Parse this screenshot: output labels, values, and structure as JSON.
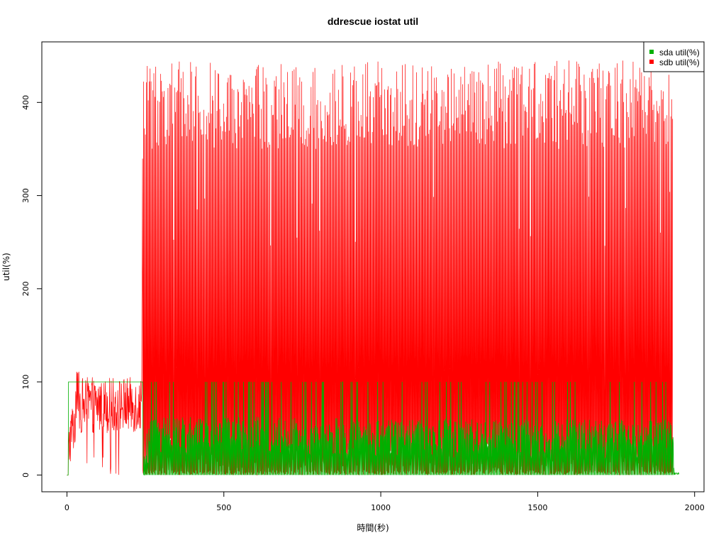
{
  "chart_data": {
    "type": "line",
    "title": "ddrescue iostat util",
    "xlabel": "時間(秒)",
    "ylabel": "util(%)",
    "xlim": [
      -80,
      2030
    ],
    "ylim": [
      -18,
      465
    ],
    "x_ticks": [
      0,
      500,
      1000,
      1500,
      2000
    ],
    "y_ticks": [
      0,
      100,
      200,
      300,
      400
    ],
    "grid": false,
    "legend_position": "top-right",
    "series": [
      {
        "name": "sda util(%)",
        "color": "#00b000",
        "profile": [
          {
            "x": 0,
            "y": 0
          },
          {
            "x": 5,
            "y": 100
          },
          {
            "x": 240,
            "y": 100
          },
          {
            "x": 245,
            "y": 0
          },
          {
            "x": 260,
            "y": 40
          },
          {
            "x": 600,
            "y": 40
          },
          {
            "x": 1000,
            "y": 38
          },
          {
            "x": 1500,
            "y": 37
          },
          {
            "x": 1930,
            "y": 37
          },
          {
            "x": 1940,
            "y": 1
          },
          {
            "x": 1950,
            "y": 1
          }
        ],
        "burst_peak": 100,
        "x_end": 1950
      },
      {
        "name": "sdb util(%)",
        "color": "#ff0000",
        "profile": [
          {
            "x": 0,
            "y": 0
          },
          {
            "x": 10,
            "y": 40
          },
          {
            "x": 40,
            "y": 75
          },
          {
            "x": 238,
            "y": 75
          },
          {
            "x": 242,
            "y": 440
          },
          {
            "x": 1930,
            "y": 425
          }
        ],
        "max_value": 445,
        "typical_peak_range": [
          350,
          445
        ],
        "x_end": 1930
      }
    ]
  }
}
